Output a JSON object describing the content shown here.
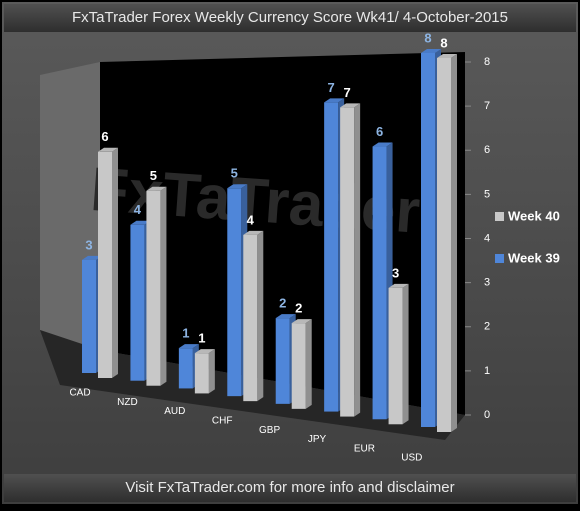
{
  "chart_data": {
    "type": "bar3d",
    "title": "FxTaTrader Forex Weekly Currency Score  Wk41/ 4-October-2015",
    "footer": "Visit FxTaTrader.com for more info and disclaimer",
    "watermark": "FxTaTrader",
    "categories": [
      "CAD",
      "NZD",
      "AUD",
      "CHF",
      "GBP",
      "JPY",
      "EUR",
      "USD"
    ],
    "series": [
      {
        "name": "Week 39",
        "color": "#4f86d9",
        "values": [
          3,
          4,
          1,
          5,
          2,
          7,
          6,
          8
        ]
      },
      {
        "name": "Week 40",
        "color": "#c8c8c8",
        "values": [
          6,
          5,
          1,
          4,
          2,
          7,
          3,
          8
        ]
      }
    ],
    "ylim": [
      0,
      8
    ],
    "yticks": [
      0,
      1,
      2,
      3,
      4,
      5,
      6,
      7,
      8
    ],
    "legend": "right"
  }
}
